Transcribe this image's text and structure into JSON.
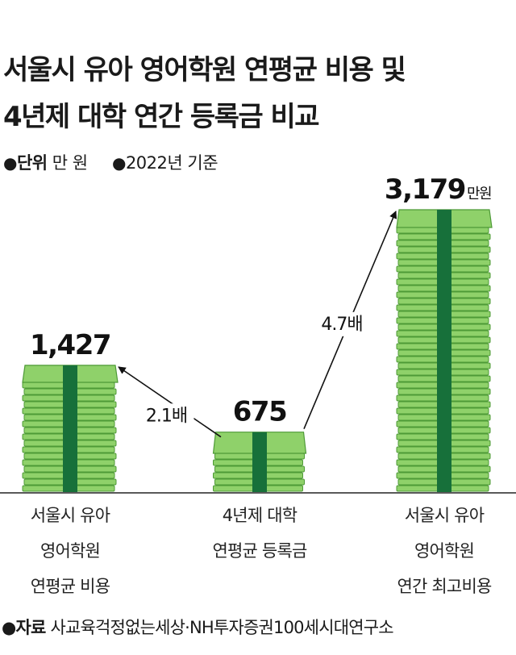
{
  "title_line1": "서울시 유아 영어학원 연평균 비용 및",
  "title_line2": "4년제 대학 연간 등록금 비교",
  "unit_label": "단위",
  "unit_value": "만 원",
  "year_note": "2022년 기준",
  "bullet": "●",
  "source_label": "자료",
  "source_text": "사교육걱정없는세상·NH투자증권100세시대연구소",
  "colors": {
    "bill": "#8fd16a",
    "bill_edge": "#4e9a37",
    "band": "#17703a",
    "arrow": "#111111"
  },
  "chart_data": {
    "type": "bar",
    "unit": "만 원",
    "categories": [
      [
        "서울시 유아",
        "영어학원",
        "연평균 비용"
      ],
      [
        "4년제 대학",
        "연평균 등록금"
      ],
      [
        "서울시 유아",
        "영어학원",
        "연간 최고비용"
      ]
    ],
    "values": [
      1427,
      675,
      3179
    ],
    "value_labels": [
      "1,427",
      "675",
      "3,179"
    ],
    "value_suffix": [
      "",
      "",
      "만원"
    ],
    "annotations": [
      {
        "text": "2.1배",
        "from": 1,
        "to": 0
      },
      {
        "text": "4.7배",
        "from": 1,
        "to": 2
      }
    ]
  }
}
